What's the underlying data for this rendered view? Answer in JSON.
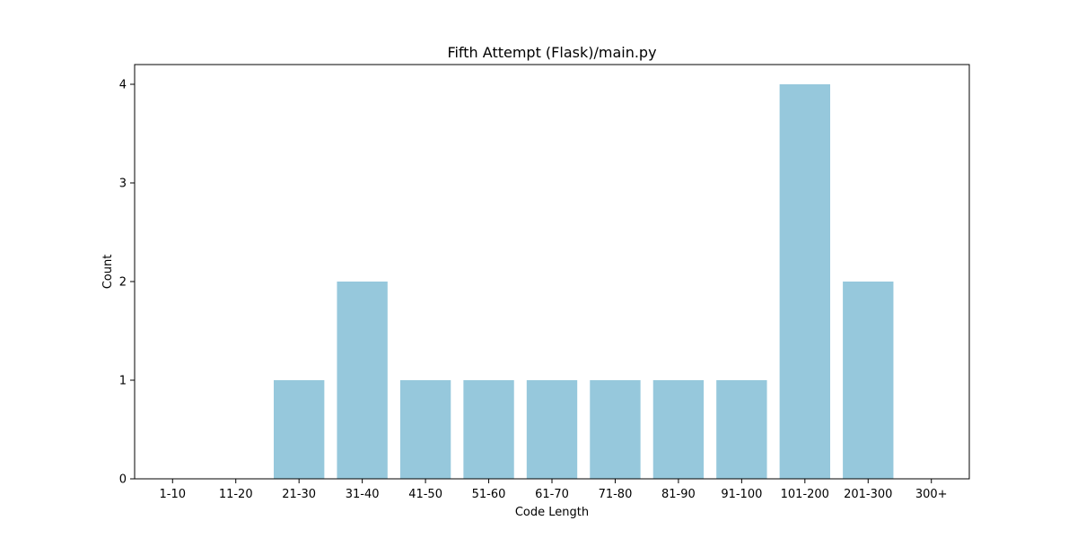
{
  "chart_data": {
    "type": "bar",
    "title": "Fifth Attempt (Flask)/main.py",
    "xlabel": "Code Length",
    "ylabel": "Count",
    "categories": [
      "1-10",
      "11-20",
      "21-30",
      "31-40",
      "41-50",
      "51-60",
      "61-70",
      "71-80",
      "81-90",
      "91-100",
      "101-200",
      "201-300",
      "300+"
    ],
    "values": [
      0,
      0,
      1,
      2,
      1,
      1,
      1,
      1,
      1,
      1,
      4,
      2,
      0
    ],
    "ylim": [
      0,
      4.2
    ],
    "yticks": [
      0,
      1,
      2,
      3,
      4
    ],
    "grid": false,
    "bar_color": "#96c8dc",
    "axis_color": "#000000"
  }
}
